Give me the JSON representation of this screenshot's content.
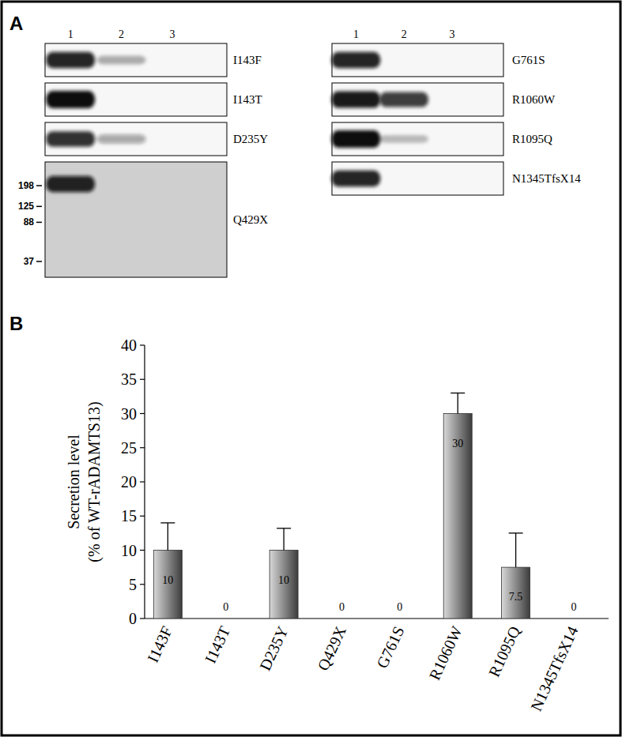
{
  "panel_a": {
    "label": "A",
    "lanes": [
      "1",
      "2",
      "3"
    ],
    "blots": [
      {
        "name": "I143F",
        "bands": [
          0.9,
          0.3,
          0
        ]
      },
      {
        "name": "I143T",
        "bands": [
          1,
          0,
          0
        ]
      },
      {
        "name": "D235Y",
        "bands": [
          0.85,
          0.35,
          0
        ]
      },
      {
        "name": "Q429X",
        "bands": [
          0.9,
          0,
          0
        ],
        "markers": [
          198,
          125,
          88,
          37
        ]
      },
      {
        "name": "G761S",
        "bands": [
          0.9,
          0,
          0
        ]
      },
      {
        "name": "R1060W",
        "bands": [
          0.95,
          0.8,
          0
        ]
      },
      {
        "name": "R1095Q",
        "bands": [
          1,
          0.25,
          0
        ]
      },
      {
        "name": "N1345TfsX14",
        "bands": [
          0.9,
          0,
          0
        ]
      }
    ]
  },
  "panel_b_label": "B",
  "chart_data": {
    "type": "bar",
    "ylabel": [
      "Secretion level",
      "(% of WT-rADAMTS13)"
    ],
    "categories": [
      "I143F",
      "I143T",
      "D235Y",
      "Q429X",
      "G761S",
      "R1060W",
      "R1095Q",
      "N1345TfsX14"
    ],
    "values": [
      10,
      0,
      10,
      0,
      0,
      30,
      7.5,
      0
    ],
    "errors": [
      4,
      0,
      3.2,
      0,
      0,
      3,
      5,
      0
    ],
    "color": "#8a8a8a",
    "ylim": [
      0,
      40
    ],
    "yticks": [
      0,
      5,
      10,
      15,
      20,
      25,
      30,
      35,
      40
    ],
    "grid": false,
    "data_labels": true
  }
}
